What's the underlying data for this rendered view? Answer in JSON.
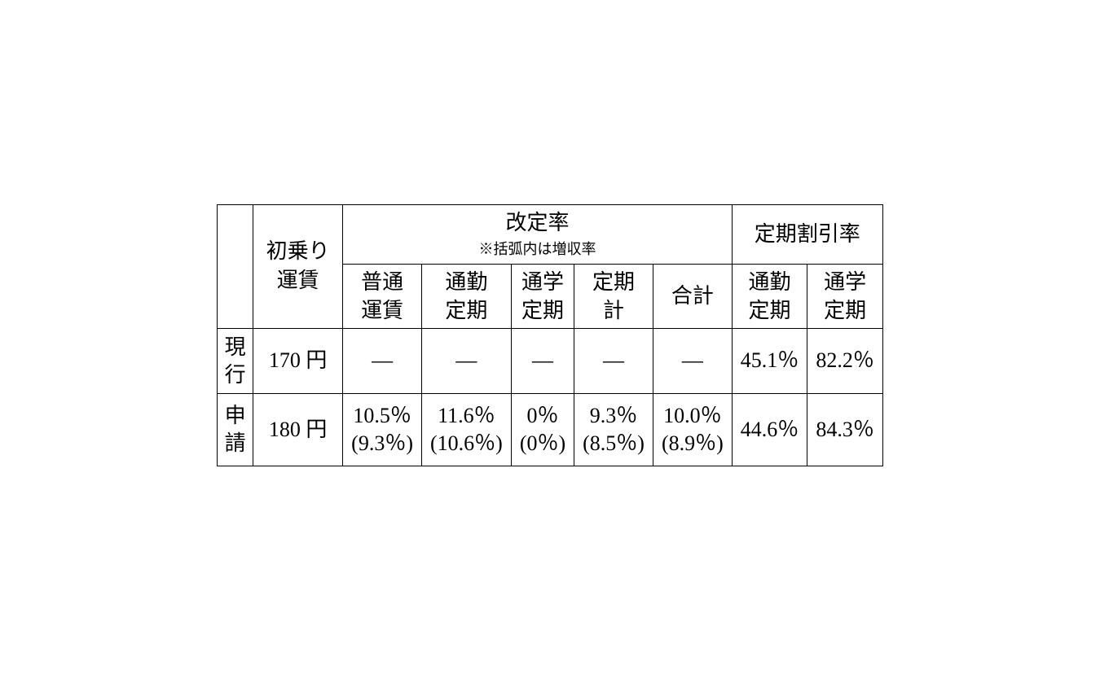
{
  "table": {
    "headers": {
      "corner": "",
      "base_fare": "初乗り\n運賃",
      "revision_rate_title": "改定率",
      "revision_rate_note": "※括弧内は増収率",
      "discount_rate_title": "定期割引率",
      "sub": {
        "regular_fare": "普通\n運賃",
        "commuter_pass": "通勤\n定期",
        "student_pass": "通学\n定期",
        "pass_total": "定期\n計",
        "total": "合計",
        "disc_commuter": "通勤\n定期",
        "disc_student": "通学\n定期"
      }
    },
    "rows": [
      {
        "label": "現\n行",
        "base_fare": "170 円",
        "regular_fare": "―",
        "commuter_pass": "―",
        "student_pass": "―",
        "pass_total": "―",
        "total": "―",
        "disc_commuter": "45.1％",
        "disc_student": "82.2％"
      },
      {
        "label": "申\n請",
        "base_fare": "180 円",
        "regular_fare": "10.5％\n(9.3％)",
        "commuter_pass": "11.6％\n(10.6％)",
        "student_pass": "0％\n(0％)",
        "pass_total": "9.3％\n(8.5％)",
        "total": "10.0％\n(8.9％)",
        "disc_commuter": "44.6％",
        "disc_student": "84.3％"
      }
    ],
    "styling": {
      "border_color": "#000000",
      "background_color": "#ffffff",
      "font_family": "MS Mincho, Hiragino Mincho Pro, serif",
      "header_fontsize": 26,
      "note_fontsize": 18,
      "data_fontsize": 26,
      "text_color": "#000000"
    }
  }
}
